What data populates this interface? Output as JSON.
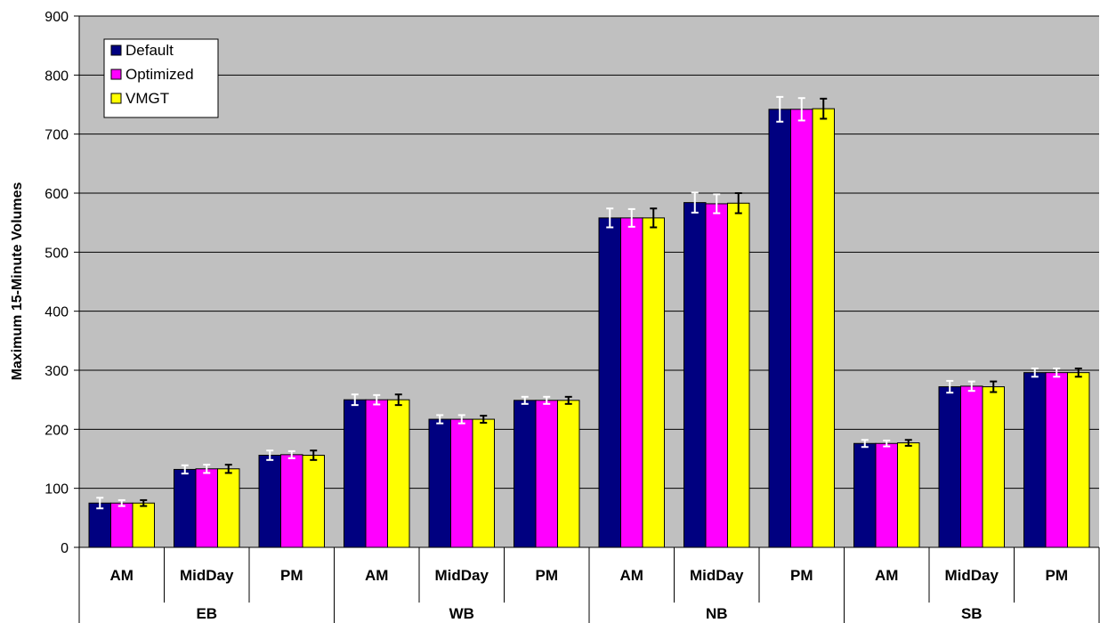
{
  "chart_data": {
    "type": "bar",
    "ylabel": "Maximum 15-Minute Volumes",
    "ylim": [
      0,
      900
    ],
    "yticks": [
      0,
      100,
      200,
      300,
      400,
      500,
      600,
      700,
      800,
      900
    ],
    "grid": true,
    "legend_position": "top-left",
    "groups": [
      "EB",
      "WB",
      "NB",
      "SB"
    ],
    "periods": [
      "AM",
      "MidDay",
      "PM"
    ],
    "categories": [
      "EB AM",
      "EB MidDay",
      "EB PM",
      "WB AM",
      "WB MidDay",
      "WB PM",
      "NB AM",
      "NB MidDay",
      "NB PM",
      "SB AM",
      "SB MidDay",
      "SB PM"
    ],
    "series": [
      {
        "name": "Default",
        "color": "#000080",
        "values": [
          75,
          132,
          156,
          250,
          217,
          249,
          558,
          584,
          742,
          176,
          272,
          296
        ],
        "error": [
          9,
          7,
          8,
          9,
          7,
          6,
          16,
          17,
          21,
          6,
          10,
          7
        ],
        "error_color": "#ffffff"
      },
      {
        "name": "Optimized",
        "color": "#ff00ff",
        "values": [
          75,
          133,
          157,
          250,
          217,
          249,
          558,
          582,
          742,
          176,
          273,
          296
        ],
        "error": [
          5,
          7,
          6,
          8,
          7,
          6,
          15,
          16,
          19,
          5,
          8,
          7
        ],
        "error_color": "#ffffff"
      },
      {
        "name": "VMGT",
        "color": "#ffff00",
        "values": [
          75,
          133,
          156,
          250,
          217,
          249,
          558,
          583,
          743,
          177,
          272,
          296
        ],
        "error": [
          5,
          7,
          8,
          9,
          6,
          6,
          16,
          17,
          17,
          5,
          9,
          7
        ],
        "error_color": "#000000"
      }
    ]
  }
}
